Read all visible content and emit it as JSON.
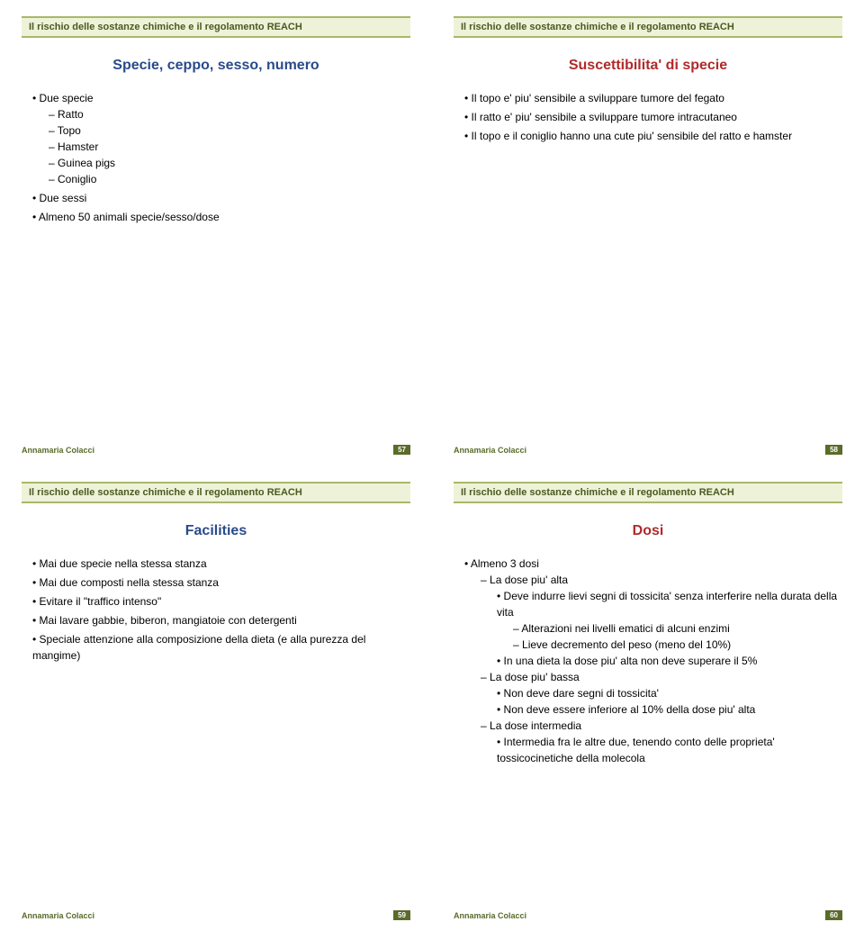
{
  "colors": {
    "band_bg": "#eef2d9",
    "band_border": "#a8b86a",
    "header_text": "#4a5a1f",
    "title_blue": "#2a4a8a",
    "title_red": "#b02a2a",
    "footer_name": "#5a6b2a",
    "badge_bg": "#5a6b2a",
    "body_text": "#000000"
  },
  "common": {
    "header": "Il rischio delle sostanze chimiche e il regolamento REACH",
    "footer_name": "Annamaria Colacci"
  },
  "slides": [
    {
      "title": "Specie, ceppo, sesso, numero",
      "title_color": "title_blue",
      "page": "57",
      "bullets": [
        {
          "t": "Due specie",
          "sub": [
            {
              "t": "Ratto"
            },
            {
              "t": "Topo"
            },
            {
              "t": "Hamster"
            },
            {
              "t": "Guinea pigs"
            },
            {
              "t": "Coniglio"
            }
          ]
        },
        {
          "t": "Due sessi"
        },
        {
          "t": "Almeno 50 animali specie/sesso/dose"
        }
      ]
    },
    {
      "title": "Suscettibilita' di specie",
      "title_color": "title_red",
      "page": "58",
      "bullets": [
        {
          "t": "Il topo e' piu' sensibile a sviluppare tumore del fegato"
        },
        {
          "t": "Il ratto e' piu' sensibile a sviluppare tumore intracutaneo"
        },
        {
          "t": "Il topo e il coniglio hanno una cute piu' sensibile del ratto e hamster"
        }
      ]
    },
    {
      "title": "Facilities",
      "title_color": "title_blue",
      "page": "59",
      "bullets": [
        {
          "t": "Mai due specie nella stessa stanza"
        },
        {
          "t": "Mai due composti nella stessa stanza"
        },
        {
          "t": "Evitare il \"traffico intenso\""
        },
        {
          "t": "Mai lavare gabbie, biberon, mangiatoie con detergenti"
        },
        {
          "t": "Speciale attenzione alla composizione della dieta (e alla purezza del mangime)"
        }
      ]
    },
    {
      "title": "Dosi",
      "title_color": "title_red",
      "page": "60",
      "bullets": [
        {
          "t": "Almeno 3 dosi",
          "sub": [
            {
              "t": "La dose piu' alta",
              "sub": [
                {
                  "t": "Deve indurre lievi segni di tossicita' senza interferire nella durata della vita",
                  "sub": [
                    {
                      "t": "Alterazioni nei livelli ematici di alcuni enzimi"
                    },
                    {
                      "t": "Lieve decremento del peso (meno del 10%)"
                    }
                  ]
                },
                {
                  "t": "In una dieta la dose piu' alta non deve superare il 5%"
                }
              ]
            },
            {
              "t": "La dose piu' bassa",
              "sub": [
                {
                  "t": "Non deve dare segni di tossicita'"
                },
                {
                  "t": "Non deve essere inferiore al 10% della dose piu' alta"
                }
              ]
            },
            {
              "t": "La dose intermedia",
              "sub": [
                {
                  "t": "Intermedia fra le altre due, tenendo conto delle proprieta' tossicocinetiche della molecola"
                }
              ]
            }
          ]
        }
      ]
    }
  ]
}
